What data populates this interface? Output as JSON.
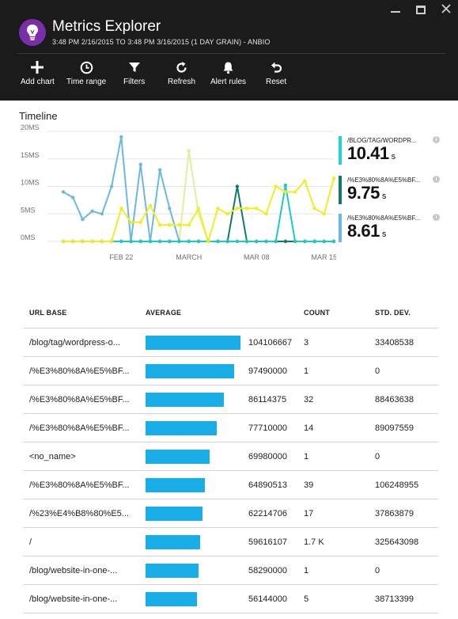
{
  "window": {
    "controls": [
      "minimize",
      "maximize",
      "close"
    ]
  },
  "header": {
    "icon": "lightbulb-icon",
    "title": "Metrics Explorer",
    "subtitle": "3:48 PM 2/16/2015 TO 3:48 PM 3/16/2015 (1 DAY GRAIN) - ANBIO"
  },
  "toolbar": [
    {
      "label": "Add chart",
      "icon": "plus-icon"
    },
    {
      "label": "Time range",
      "icon": "clock-icon"
    },
    {
      "label": "Filters",
      "icon": "funnel-icon"
    },
    {
      "label": "Refresh",
      "icon": "refresh-icon"
    },
    {
      "label": "Alert rules",
      "icon": "bell-icon"
    },
    {
      "label": "Reset",
      "icon": "undo-icon"
    }
  ],
  "timeline": {
    "title": "Timeline"
  },
  "chart_data": {
    "type": "line",
    "title": "Timeline",
    "y_ticks": [
      "20MS",
      "15MS",
      "10MS",
      "5MS",
      "0MS"
    ],
    "ylim": [
      0,
      20
    ],
    "x_ticks": [
      "FEB 22",
      "MARCH",
      "MAR 08",
      "MAR 15"
    ],
    "x": [
      "2/16",
      "2/17",
      "2/18",
      "2/19",
      "2/20",
      "2/21",
      "2/22",
      "2/23",
      "2/24",
      "2/25",
      "2/26",
      "2/27",
      "2/28",
      "3/1",
      "3/2",
      "3/3",
      "3/4",
      "3/5",
      "3/6",
      "3/7",
      "3/8",
      "3/9",
      "3/10",
      "3/11",
      "3/12",
      "3/13",
      "3/14",
      "3/15",
      "3/16"
    ],
    "grid": true,
    "series": [
      {
        "name": "/BLOG/TAG/WORDPR...",
        "color": "#f2ec24",
        "values": [
          0,
          0,
          0,
          0,
          0,
          0,
          6,
          3.5,
          3.5,
          6.5,
          3,
          3,
          3,
          3,
          6,
          0,
          6,
          5,
          6,
          6,
          6,
          5,
          10,
          9,
          9,
          11,
          6,
          5,
          11.5
        ]
      },
      {
        "name": "/%E3%80%8A%E5%BF...",
        "color": "#0f7a6a",
        "values": [
          0,
          0,
          0,
          0,
          0,
          0,
          0,
          0,
          0,
          0,
          0,
          0,
          0,
          0,
          0,
          0,
          0,
          0,
          10,
          0,
          0,
          0,
          0,
          0,
          0,
          0,
          0,
          0,
          0
        ]
      },
      {
        "name": "/%E3%80%8A%E5%BF...",
        "color": "#1dc8c8",
        "values": [
          0,
          0,
          0,
          0,
          0,
          0,
          0,
          0,
          0,
          0,
          0,
          0,
          0,
          0,
          0,
          0,
          0,
          0,
          0,
          0,
          0,
          0,
          0,
          10.2,
          0,
          0,
          0,
          0,
          0
        ]
      },
      {
        "name": "/%E3%80%8A%E5%BF...",
        "color": "#6cb8e2",
        "values": [
          9,
          8,
          4,
          5.5,
          5,
          10,
          19,
          0,
          14,
          0,
          13,
          6,
          0,
          0,
          0,
          0,
          0,
          0,
          0,
          0,
          0,
          0,
          0,
          0,
          0,
          0,
          0,
          0,
          0
        ]
      },
      {
        "name": "",
        "color": "#e4ed9a",
        "values": [
          0,
          0,
          0,
          0,
          0,
          0,
          0,
          0,
          0,
          0,
          0,
          0,
          0,
          16.5,
          5,
          0,
          0,
          0,
          0,
          0,
          0,
          0,
          0,
          0,
          0,
          0,
          0,
          0,
          0
        ]
      }
    ]
  },
  "legend": [
    {
      "name": "/BLOG/TAG/WORDPR...",
      "value": "10.41",
      "unit": "s",
      "color": "#22d1d1"
    },
    {
      "name": "/%E3%80%8A%E5%BF...",
      "value": "9.75",
      "unit": "s",
      "color": "#0f7a6a"
    },
    {
      "name": "/%E3%80%8A%E5%BF...",
      "value": "8.61",
      "unit": "s",
      "color": "#6cb8e2"
    }
  ],
  "table": {
    "headers": {
      "url": "URL BASE",
      "avg": "AVERAGE",
      "count": "COUNT",
      "std": "STD. DEV."
    },
    "bar_color": "#1aaee8",
    "rows": [
      {
        "url": "/blog/tag/wordpress-o...",
        "avg": "104106667",
        "count": "3",
        "std": "33408538",
        "avg_value": 104106667
      },
      {
        "url": "/%E3%80%8A%E5%BF...",
        "avg": "97490000",
        "count": "1",
        "std": "0",
        "avg_value": 97490000
      },
      {
        "url": "/%E3%80%8A%E5%BF...",
        "avg": "86114375",
        "count": "32",
        "std": "88463638",
        "avg_value": 86114375
      },
      {
        "url": "/%E3%80%8A%E5%BF...",
        "avg": "77710000",
        "count": "14",
        "std": "89097559",
        "avg_value": 77710000
      },
      {
        "url": "<no_name>",
        "avg": "69980000",
        "count": "1",
        "std": "0",
        "avg_value": 69980000
      },
      {
        "url": "/%E3%80%8A%E5%BF...",
        "avg": "64890513",
        "count": "39",
        "std": "106248955",
        "avg_value": 64890513
      },
      {
        "url": "/%23%E4%B8%80%E5...",
        "avg": "62214706",
        "count": "17",
        "std": "37863879",
        "avg_value": 62214706
      },
      {
        "url": "/",
        "avg": "59616107",
        "count": "1.7 K",
        "std": "325643098",
        "avg_value": 59616107
      },
      {
        "url": "/blog/website-in-one-...",
        "avg": "58290000",
        "count": "1",
        "std": "0",
        "avg_value": 58290000
      },
      {
        "url": "/blog/website-in-one-...",
        "avg": "56144000",
        "count": "5",
        "std": "38713399",
        "avg_value": 56144000
      }
    ]
  }
}
